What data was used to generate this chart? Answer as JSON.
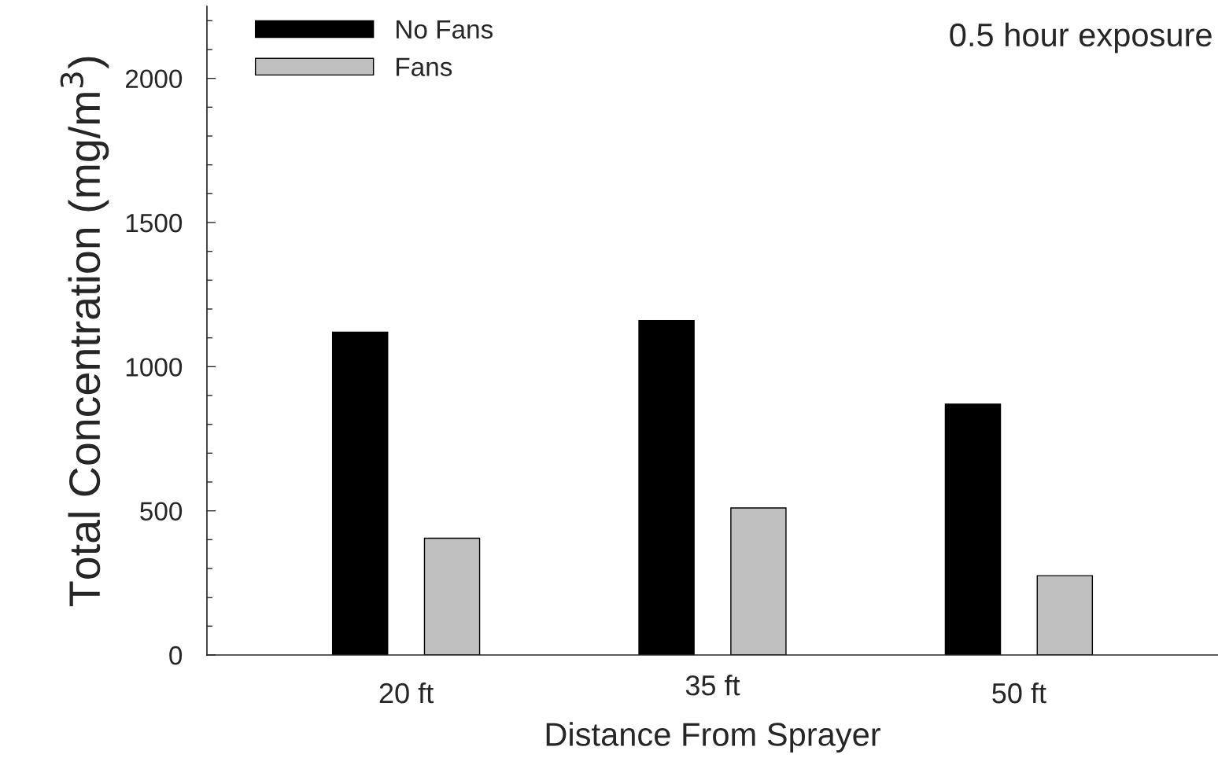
{
  "chart_data": {
    "type": "bar",
    "xlabel": "Distance From Sprayer",
    "ylabel": "Total Concentration (mg/m$^{3}$)",
    "categories": [
      "20 ft",
      "35 ft",
      "50 ft"
    ],
    "series": [
      {
        "name": "No Fans",
        "color": "#000000",
        "values": [
          1120,
          1160,
          870
        ]
      },
      {
        "name": "Fans",
        "color": "#c0c0c0",
        "values": [
          405,
          510,
          275
        ]
      }
    ],
    "ylim": [
      0,
      2250
    ],
    "yticks": [
      0,
      {
        "value": 100,
        "label": null
      },
      {
        "value": 200,
        "label": null
      },
      {
        "value": 300,
        "label": null
      },
      {
        "value": 400,
        "label": null
      },
      500,
      {
        "value": 600,
        "label": null
      },
      {
        "value": 700,
        "label": null
      },
      {
        "value": 800,
        "label": null
      },
      {
        "value": 900,
        "label": null
      },
      1000,
      {
        "value": 1100,
        "label": null
      },
      {
        "value": 1200,
        "label": null
      },
      {
        "value": 1300,
        "label": null
      },
      {
        "value": 1400,
        "label": null
      },
      1500,
      {
        "value": 1600,
        "label": null
      },
      {
        "value": 1700,
        "label": null
      },
      {
        "value": 1800,
        "label": null
      },
      {
        "value": 1900,
        "label": null
      },
      2000,
      {
        "value": 2100,
        "label": null
      },
      {
        "value": 2200,
        "label": null
      }
    ],
    "annotations": [
      "0.5 hour exposure"
    ],
    "legend": "top left",
    "grid": false
  }
}
